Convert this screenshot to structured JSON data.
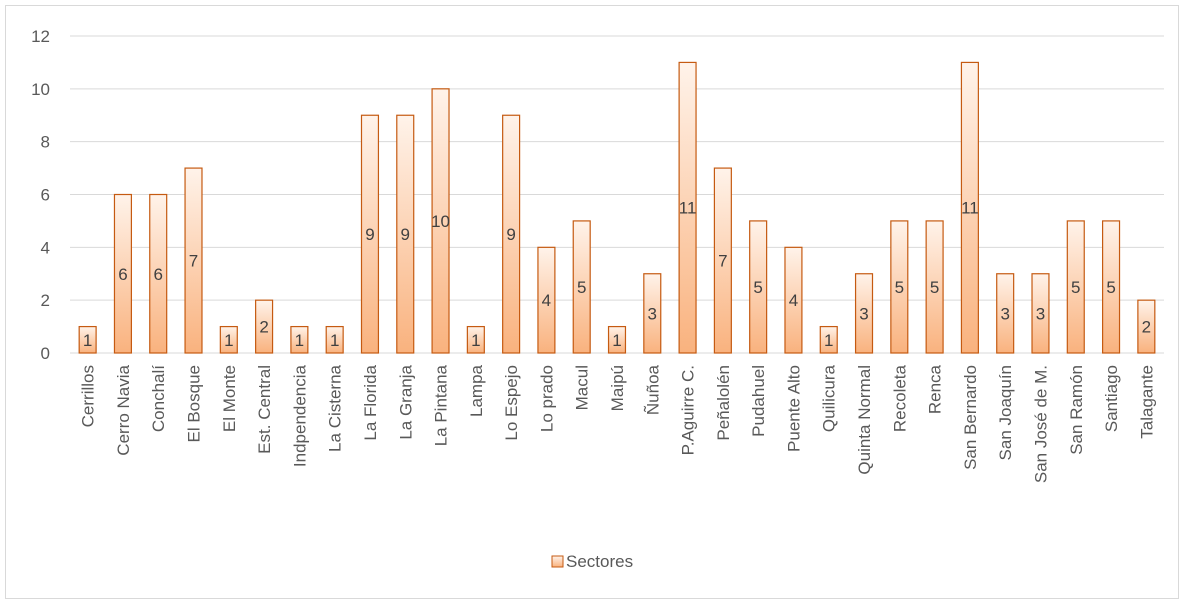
{
  "chart_data": {
    "type": "bar",
    "categories": [
      "Cerrillos",
      "Cerro Navia",
      "Conchalí",
      "El Bosque",
      "El Monte",
      "Est. Central",
      "Indpendencia",
      "La Cisterna",
      "La Florida",
      "La Granja",
      "La Pintana",
      "Lampa",
      "Lo Espejo",
      "Lo prado",
      "Macul",
      "Maipú",
      "Ñuñoa",
      "P.Aguirre C.",
      "Peñalolén",
      "Pudahuel",
      "Puente Alto",
      "Quilicura",
      "Quinta Normal",
      "Recoleta",
      "Renca",
      "San Bernardo",
      "San Joaquín",
      "San José de M.",
      "San Ramón",
      "Santiago",
      "Talagante"
    ],
    "series": [
      {
        "name": "Sectores",
        "values": [
          1,
          6,
          6,
          7,
          1,
          2,
          1,
          1,
          9,
          9,
          10,
          1,
          9,
          4,
          5,
          1,
          3,
          11,
          7,
          5,
          4,
          1,
          3,
          5,
          5,
          11,
          3,
          3,
          5,
          5,
          2
        ]
      }
    ],
    "ylim": [
      0,
      12
    ],
    "yticks": [
      0,
      2,
      4,
      6,
      8,
      10,
      12
    ],
    "grid": true,
    "legend_position": "bottom",
    "data_labels": true,
    "colors": {
      "bar_fill_top": "#fff3ea",
      "bar_fill_bottom": "#f9b27e",
      "bar_stroke": "#c55a11",
      "grid": "#d9d9d9",
      "axis_text": "#595959",
      "data_label": "#404040"
    }
  }
}
